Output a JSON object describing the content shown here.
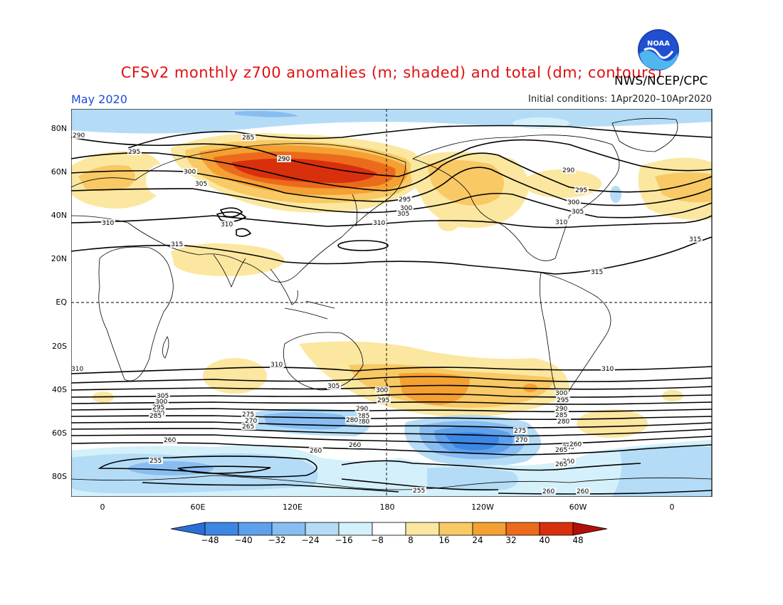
{
  "title": "CFSv2 monthly z700 anomalies (m; shaded) and total (dm; contours)",
  "agency": "NWS/NCEP/CPC",
  "logo_text": "NOAA",
  "month_label": "May 2020",
  "init_label": "Initial conditions: 1Apr2020–10Apr2020",
  "lat_labels": [
    "80N",
    "60N",
    "40N",
    "20N",
    "EQ",
    "20S",
    "40S",
    "60S",
    "80S"
  ],
  "lon_labels": [
    "0",
    "60E",
    "120E",
    "180",
    "120W",
    "60W",
    "0"
  ],
  "colorbar": {
    "labels": [
      "−48",
      "−40",
      "−32",
      "−24",
      "−16",
      "−8",
      "8",
      "16",
      "24",
      "32",
      "40",
      "48"
    ],
    "colors": [
      "#2a6fd6",
      "#3c86e4",
      "#5da0ec",
      "#88bdf2",
      "#b4dcf6",
      "#d4f0fa",
      "#ffffff",
      "#fbe7a0",
      "#f8c964",
      "#f4a033",
      "#ec6a1c",
      "#d8300c",
      "#b01008"
    ]
  },
  "contour_labels": {
    "north": [
      "290",
      "285",
      "295",
      "300",
      "305",
      "290",
      "310",
      "310",
      "315",
      "295",
      "300",
      "305",
      "310",
      "290",
      "295",
      "300",
      "305",
      "310",
      "315",
      "315"
    ],
    "south": [
      "310",
      "310",
      "310",
      "305",
      "300",
      "295",
      "290",
      "285",
      "280",
      "300",
      "295",
      "290",
      "285",
      "280",
      "275",
      "270",
      "265",
      "260",
      "260",
      "255",
      "260",
      "260",
      "265",
      "255",
      "275",
      "270",
      "265",
      "260",
      "305",
      "300",
      "295",
      "290",
      "285",
      "280",
      "260",
      "265",
      "260"
    ]
  }
}
